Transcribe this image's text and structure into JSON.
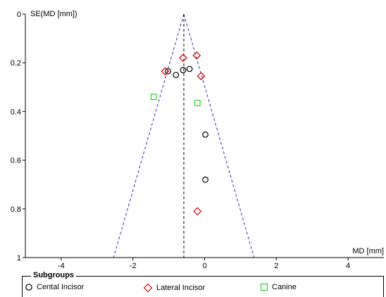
{
  "chart_data": {
    "type": "scatter",
    "title": "",
    "xlabel": "MD [mm]",
    "ylabel": "SE(MD [mm])",
    "xlim": [
      -5,
      5
    ],
    "ylim": [
      1,
      0
    ],
    "y_inverted": true,
    "x_ticks": [
      "-4",
      "-2",
      "0",
      "2",
      "4"
    ],
    "y_ticks": [
      "0",
      "0.2",
      "0.4",
      "0.6",
      "0.8",
      "1"
    ],
    "pooled_estimate": -0.58,
    "funnel_base_y": 1,
    "legend_title": "Subgroups",
    "legend_placement": "bottom",
    "series": [
      {
        "name": "Cental Incisor",
        "marker": "circle",
        "color": "#000000",
        "points": [
          {
            "x": -1.02,
            "y": 0.235
          },
          {
            "x": -0.8,
            "y": 0.25
          },
          {
            "x": -0.6,
            "y": 0.23
          },
          {
            "x": -0.42,
            "y": 0.225
          },
          {
            "x": 0.02,
            "y": 0.495
          },
          {
            "x": 0.02,
            "y": 0.68
          }
        ]
      },
      {
        "name": "Lateral Incisor",
        "marker": "diamond",
        "color": "#cc0000",
        "points": [
          {
            "x": -1.1,
            "y": 0.235
          },
          {
            "x": -0.6,
            "y": 0.18
          },
          {
            "x": -0.22,
            "y": 0.17
          },
          {
            "x": -0.1,
            "y": 0.255
          },
          {
            "x": -0.2,
            "y": 0.81
          }
        ]
      },
      {
        "name": "Canine",
        "marker": "square",
        "color": "#33cc33",
        "points": [
          {
            "x": -1.42,
            "y": 0.34
          },
          {
            "x": -0.2,
            "y": 0.365
          }
        ]
      }
    ]
  }
}
